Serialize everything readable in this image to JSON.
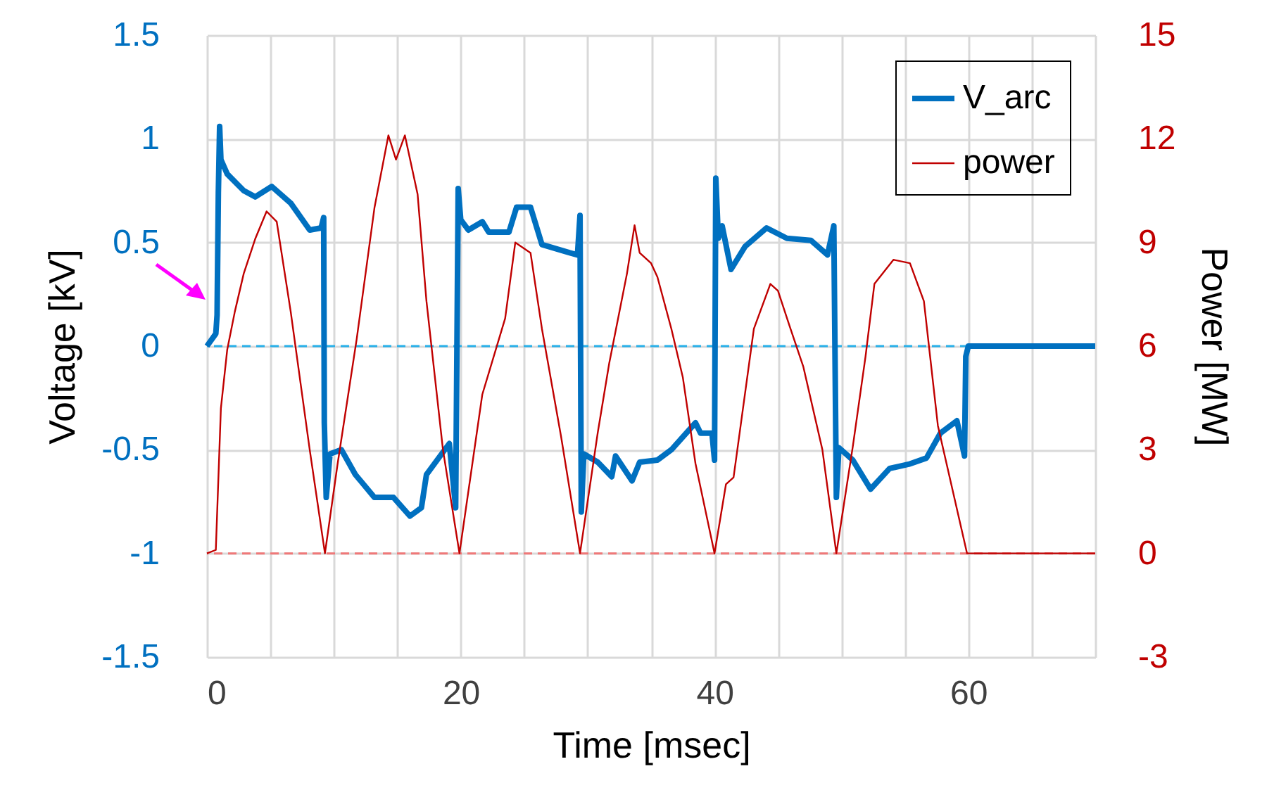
{
  "chart_data": {
    "type": "line",
    "xlabel": "Time [msec]",
    "ylabel": "Voltage [kV]",
    "y2label": "Power [MW]",
    "xlim": [
      0,
      70
    ],
    "xticks": [
      0,
      {
        "value": 5,
        "label": null
      },
      {
        "value": 10,
        "label": null
      },
      {
        "value": 15,
        "label": null
      },
      20,
      {
        "value": 25,
        "label": null
      },
      {
        "value": 30,
        "label": null
      },
      {
        "value": 35,
        "label": null
      },
      40,
      {
        "value": 45,
        "label": null
      },
      {
        "value": 50,
        "label": null
      },
      {
        "value": 55,
        "label": null
      },
      60,
      {
        "value": 65,
        "label": null
      },
      {
        "value": 70,
        "label": null
      }
    ],
    "ylim": [
      -1.5,
      1.5
    ],
    "yticks": [
      -1.5,
      -1,
      -0.5,
      0,
      0.5,
      1,
      1.5
    ],
    "y2lim": [
      -3,
      15
    ],
    "y2ticks": [
      -3,
      0,
      3,
      6,
      9,
      12,
      15
    ],
    "grid": true,
    "legend": "top right",
    "ref_lines": [
      {
        "axis": "y",
        "value": 0,
        "color": "#29b0e8",
        "line_style": "dashed"
      },
      {
        "axis": "y2",
        "value": 0,
        "color": "#f07878",
        "line_style": "dashed"
      }
    ],
    "series": [
      {
        "name": "V_arc",
        "color": "#0070c0",
        "x": [
          0,
          0.7,
          0.8,
          0.9,
          1.0,
          1.1,
          1.6,
          2.9,
          3.8,
          5.1,
          6.6,
          8.1,
          9.0,
          9.2,
          9.25,
          9.4,
          9.7,
          10.6,
          11.7,
          13.2,
          14.7,
          16.0,
          16.9,
          17.3,
          19.1,
          19.6,
          19.8,
          20.0,
          20.6,
          21.7,
          22.2,
          23.8,
          24.4,
          25.5,
          26.4,
          28.6,
          29.2,
          29.4,
          29.5,
          29.7,
          30.8,
          31.9,
          32.2,
          33.5,
          34.1,
          35.5,
          36.6,
          38.5,
          38.9,
          39.8,
          40.0,
          40.1,
          40.3,
          40.6,
          41.3,
          42.4,
          44.1,
          45.7,
          47.6,
          48.9,
          49.4,
          49.6,
          49.8,
          50.9,
          52.3,
          53.8,
          55.3,
          56.7,
          57.8,
          59.1,
          59.7,
          59.8,
          60.0,
          70
        ],
        "values": [
          0,
          0.06,
          0.15,
          0.74,
          1.06,
          0.9,
          0.83,
          0.75,
          0.72,
          0.77,
          0.69,
          0.56,
          0.57,
          0.62,
          -0.37,
          -0.73,
          -0.52,
          -0.5,
          -0.62,
          -0.73,
          -0.73,
          -0.82,
          -0.78,
          -0.62,
          -0.47,
          -0.78,
          0.76,
          0.61,
          0.56,
          0.6,
          0.55,
          0.55,
          0.67,
          0.67,
          0.49,
          0.45,
          0.44,
          0.63,
          -0.8,
          -0.52,
          -0.56,
          -0.63,
          -0.53,
          -0.65,
          -0.56,
          -0.55,
          -0.5,
          -0.37,
          -0.42,
          -0.42,
          -0.55,
          0.81,
          0.52,
          0.58,
          0.37,
          0.48,
          0.57,
          0.52,
          0.51,
          0.44,
          0.58,
          -0.73,
          -0.49,
          -0.55,
          -0.69,
          -0.59,
          -0.57,
          -0.54,
          -0.42,
          -0.36,
          -0.53,
          -0.05,
          0,
          0
        ]
      },
      {
        "name": "power",
        "color": "#c00000",
        "axis": "y2",
        "x": [
          0,
          0.7,
          1.1,
          1.6,
          2.2,
          2.9,
          3.8,
          4.7,
          5.5,
          6.6,
          8.1,
          9.3,
          10.3,
          11.8,
          13.2,
          14.3,
          14.9,
          15.6,
          16.6,
          17.3,
          18.6,
          19.9,
          21.7,
          23.5,
          24.3,
          25.5,
          26.4,
          27.9,
          29.4,
          30.8,
          31.7,
          32.4,
          33.1,
          33.7,
          34.1,
          35.0,
          35.5,
          36.6,
          37.5,
          38.5,
          40.0,
          40.9,
          41.5,
          43.1,
          44.4,
          45.0,
          45.9,
          47.0,
          48.5,
          49.6,
          50.9,
          51.9,
          52.6,
          54.1,
          55.4,
          56.5,
          57.6,
          59.9,
          70
        ],
        "values": [
          0,
          0.1,
          4.2,
          5.9,
          7.0,
          8.1,
          9.1,
          9.9,
          9.6,
          7.0,
          3.0,
          0,
          2.6,
          6.2,
          10.0,
          12.1,
          11.4,
          12.1,
          10.4,
          7.3,
          3.0,
          0,
          4.6,
          6.8,
          9.0,
          8.7,
          6.5,
          3.4,
          0,
          3.5,
          5.5,
          6.8,
          8.1,
          9.5,
          8.7,
          8.4,
          8.0,
          6.5,
          5.1,
          2.6,
          0,
          2.0,
          2.2,
          6.5,
          7.8,
          7.6,
          6.6,
          5.4,
          3.0,
          0,
          3.1,
          5.7,
          7.8,
          8.5,
          8.4,
          7.3,
          3.7,
          0,
          0
        ]
      }
    ]
  }
}
